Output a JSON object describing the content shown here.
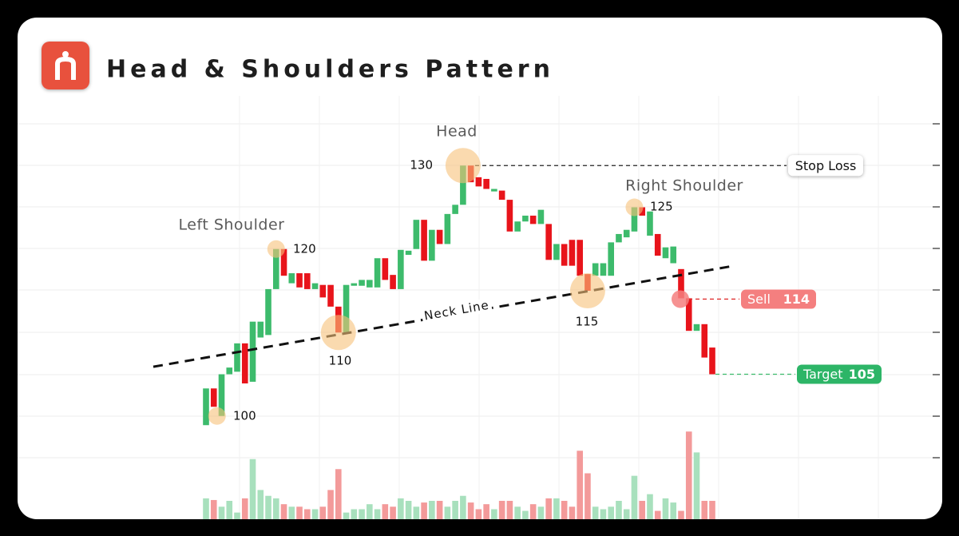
{
  "chart_data": {
    "type": "candlestick",
    "title": "Head & Shoulders Pattern",
    "ylim": [
      95,
      135
    ],
    "up_color": "#3dbb6c",
    "down_color": "#e8141b",
    "open": [
      98.9,
      103.3,
      100,
      105,
      105.3,
      108.7,
      104.1,
      109.4,
      109.7,
      115.2,
      120,
      115.9,
      117.1,
      117.1,
      115.2,
      115.7,
      115.7,
      113.1,
      110,
      115.6,
      115.6,
      115.4,
      115.4,
      118.9,
      116.9,
      115.2,
      119.3,
      120,
      123.5,
      118.6,
      122.3,
      120.6,
      124.2,
      125.3,
      130,
      128.6,
      128.4,
      126.9,
      127,
      125.9,
      122.1,
      123.3,
      124,
      123,
      123,
      118.7,
      120.6,
      121.1,
      121.1,
      117,
      116.8,
      116.8,
      116.8,
      120.8,
      121.4,
      122.1,
      125,
      121.6,
      121.8,
      118.9,
      118.3,
      117.6,
      114.1,
      110.2,
      111,
      108.2
    ],
    "close": [
      103.3,
      101.1,
      105,
      105.8,
      108.7,
      103.9,
      111.3,
      111.3,
      115.2,
      120,
      116.8,
      117.1,
      115.4,
      115.2,
      115.9,
      114.2,
      113.1,
      110,
      115.7,
      115.9,
      116.3,
      116.3,
      118.9,
      116.3,
      115.2,
      119.9,
      119.8,
      123.5,
      118.6,
      122.3,
      120.6,
      124.2,
      125.3,
      130,
      128,
      127.5,
      127.2,
      127.2,
      125.9,
      122.1,
      123.3,
      124,
      123,
      124.7,
      118.7,
      120.6,
      118,
      118,
      116.8,
      115,
      118.3,
      118.3,
      120.8,
      121.8,
      122.3,
      125,
      124,
      124.5,
      119.2,
      120.2,
      120.3,
      114.1,
      110.2,
      111,
      107,
      105
    ],
    "volume": [
      25,
      23,
      15,
      22,
      8,
      25,
      72,
      35,
      28,
      25,
      18,
      15,
      15,
      12,
      12,
      15,
      35,
      60,
      8,
      12,
      12,
      18,
      12,
      18,
      15,
      25,
      22,
      15,
      20,
      22,
      22,
      15,
      22,
      28,
      20,
      12,
      18,
      12,
      22,
      22,
      15,
      10,
      18,
      15,
      25,
      25,
      22,
      15,
      82,
      55,
      15,
      12,
      15,
      22,
      12,
      52,
      22,
      30,
      10,
      25,
      20,
      10,
      105,
      80,
      22,
      22
    ],
    "volume_lim": [
      0,
      110
    ],
    "peaks": [
      {
        "label": "Left Shoulder",
        "value": 120
      },
      {
        "label": "Head",
        "value": 130
      },
      {
        "label": "Right Shoulder",
        "value": 125
      }
    ],
    "troughs": [
      {
        "value": 100
      },
      {
        "value": 110
      },
      {
        "value": 115
      }
    ],
    "neckline": {
      "label": "Neck Line",
      "values": [
        105.9,
        118
      ]
    },
    "levels": [
      {
        "label": "Stop Loss",
        "value": 130
      },
      {
        "label": "Sell",
        "value": 114,
        "color": "#f47f7f"
      },
      {
        "label": "Target",
        "value": 105,
        "color": "#2db567"
      }
    ]
  }
}
